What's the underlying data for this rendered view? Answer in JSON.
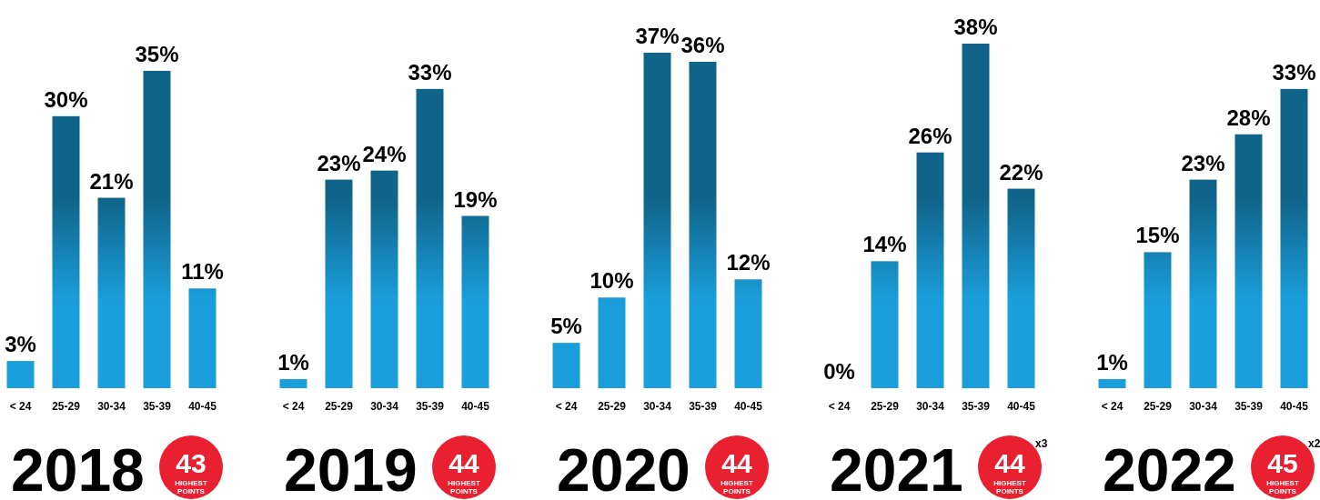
{
  "chart_data": [
    {
      "type": "bar",
      "title": "2018",
      "categories": [
        "< 24",
        "25-29",
        "30-34",
        "35-39",
        "40-45"
      ],
      "values": [
        3,
        30,
        21,
        35,
        11
      ],
      "value_labels": [
        "3%",
        "30%",
        "21%",
        "35%",
        "11%"
      ],
      "color": "#1a9fdc",
      "annotations": [
        "43",
        "HIGHEST",
        "POINTS"
      ]
    },
    {
      "type": "bar",
      "title": "2019",
      "categories": [
        "< 24",
        "25-29",
        "30-34",
        "35-39",
        "40-45"
      ],
      "values": [
        1,
        23,
        24,
        33,
        19
      ],
      "value_labels": [
        "1%",
        "23%",
        "24%",
        "33%",
        "19%"
      ],
      "color": "#1a9fdc",
      "annotations": [
        "44",
        "HIGHEST",
        "POINTS"
      ]
    },
    {
      "type": "bar",
      "title": "2020",
      "categories": [
        "< 24",
        "25-29",
        "30-34",
        "35-39",
        "40-45"
      ],
      "values": [
        5,
        10,
        37,
        36,
        12
      ],
      "value_labels": [
        "5%",
        "10%",
        "37%",
        "36%",
        "12%"
      ],
      "color": "#1a9fdc",
      "annotations": [
        "44",
        "HIGHEST",
        "POINTS"
      ]
    },
    {
      "type": "bar",
      "title": "2021",
      "categories": [
        "< 24",
        "25-29",
        "30-34",
        "35-39",
        "40-45"
      ],
      "values": [
        0,
        14,
        26,
        38,
        22
      ],
      "value_labels": [
        "0%",
        "14%",
        "26%",
        "38%",
        "22%"
      ],
      "color": "#1a9fdc",
      "annotations": [
        "44",
        "HIGHEST",
        "POINTS",
        "x3"
      ]
    },
    {
      "type": "bar",
      "title": "2022",
      "categories": [
        "< 24",
        "25-29",
        "30-34",
        "35-39",
        "40-45"
      ],
      "values": [
        1,
        15,
        23,
        28,
        33
      ],
      "value_labels": [
        "1%",
        "15%",
        "23%",
        "28%",
        "33%"
      ],
      "color": "#1a9fdc",
      "annotations": [
        "45",
        "HIGHEST",
        "POINTS",
        "x2"
      ]
    }
  ]
}
